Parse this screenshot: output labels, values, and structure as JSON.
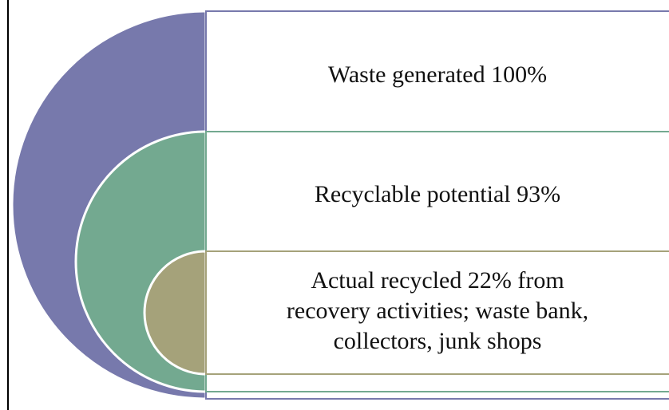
{
  "items": [
    {
      "lines": [
        "Waste generated 100%"
      ]
    },
    {
      "lines": [
        "Recyclable potential 93%"
      ]
    },
    {
      "lines": [
        "Actual recycled 22% from",
        "recovery activities; waste bank,",
        "collectors, junk shops"
      ]
    }
  ]
}
